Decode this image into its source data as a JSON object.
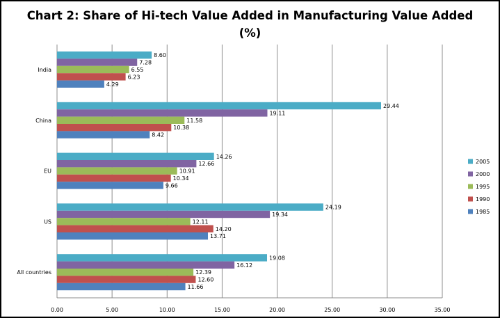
{
  "title_line1": "Chart 2: Share of Hi-tech Value Added in Manufacturing Value Added",
  "title_line2": "(%)",
  "chart_data": {
    "type": "bar",
    "orientation": "horizontal",
    "title": "Chart 2: Share of Hi-tech Value Added in Manufacturing Value Added (%)",
    "categories": [
      "India",
      "China",
      "EU",
      "US",
      "All countries"
    ],
    "series": [
      {
        "name": "2005",
        "color": "#4bacc6",
        "values": [
          8.6,
          29.44,
          14.26,
          24.19,
          19.08
        ],
        "labels": [
          "8.60",
          "29.44",
          "14.26",
          "24.19",
          "19.08"
        ]
      },
      {
        "name": "2000",
        "color": "#8064a2",
        "values": [
          7.28,
          19.11,
          12.66,
          19.34,
          16.12
        ],
        "labels": [
          "7.28",
          "19.11",
          "12.66",
          "19.34",
          "16.12"
        ]
      },
      {
        "name": "1995",
        "color": "#9bbb59",
        "values": [
          6.55,
          11.58,
          10.91,
          12.11,
          12.39
        ],
        "labels": [
          "6.55",
          "11.58",
          "10.91",
          "12.11",
          "12.39"
        ]
      },
      {
        "name": "1990",
        "color": "#c0504d",
        "values": [
          6.23,
          10.38,
          10.34,
          14.2,
          12.6
        ],
        "labels": [
          "6.23",
          "10.38",
          "10.34",
          "14.20",
          "12.60"
        ]
      },
      {
        "name": "1985",
        "color": "#4f81bd",
        "values": [
          4.29,
          8.42,
          9.66,
          13.71,
          11.66
        ],
        "labels": [
          "4.29",
          "8.42",
          "9.66",
          "13.71",
          "11.66"
        ]
      }
    ],
    "xlim": [
      0,
      35
    ],
    "xticks": [
      0,
      5,
      10,
      15,
      20,
      25,
      30,
      35
    ],
    "xtick_labels": [
      "0.00",
      "5.00",
      "10.00",
      "15.00",
      "20.00",
      "25.00",
      "30.00",
      "35.00"
    ],
    "grid": true,
    "legend_position": "right"
  }
}
